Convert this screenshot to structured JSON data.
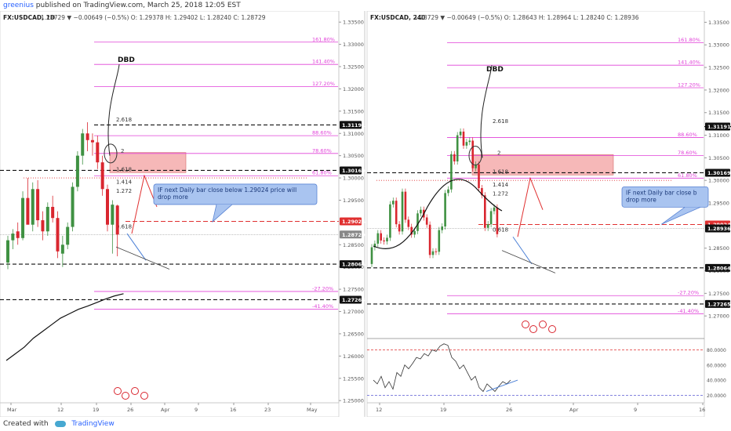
{
  "header": {
    "user": "greenius",
    "published": "published on TradingView.com, March 25, 2018 12:05 EST"
  },
  "footer": {
    "created_with": "Created with",
    "brand": "TradingView"
  },
  "colors": {
    "up": "#3f9142",
    "down": "#d9262f",
    "fib": "#e040d8",
    "zone": "#f4a6a6",
    "note_bg": "#a9c4f0",
    "note_border": "#5a84d4",
    "arrow_red": "#e03030",
    "arrow_blue": "#4a7fd6"
  },
  "chart_data": [
    {
      "type": "candlestick",
      "symbol_title": "FX:USDCAD, 1D",
      "ohlc_label": "1.28729  ▼  −0.00649 (−0.5%)  O: 1.29378  H: 1.29402  L: 1.28240  C: 1.28729",
      "x_ticks": [
        "Mar",
        "12",
        "19",
        "26",
        "Apr",
        "9",
        "16",
        "23",
        "May"
      ],
      "y_ticks": [
        "1.33500",
        "1.33000",
        "1.32500",
        "1.32000",
        "1.31500",
        "1.31000",
        "1.30500",
        "1.30000",
        "1.29500",
        "1.28500",
        "1.28000",
        "1.27500",
        "1.27000",
        "1.26500",
        "1.26000",
        "1.25500",
        "1.25000"
      ],
      "ylim": [
        1.2495,
        1.3375
      ],
      "price_tags": [
        {
          "label": "1.31191",
          "value": 1.31191,
          "style": "black"
        },
        {
          "label": "1.30169",
          "value": 1.30169,
          "style": "black"
        },
        {
          "label": "1.29024",
          "value": 1.29024,
          "style": "red"
        },
        {
          "label": "1.28729",
          "value": 1.28729,
          "style": "gray"
        },
        {
          "label": "1.28064",
          "value": 1.28064,
          "style": "black"
        },
        {
          "label": "1.27265",
          "value": 1.27265,
          "style": "black"
        }
      ],
      "fib_levels": [
        {
          "label": "161.80%",
          "value": 1.3305
        },
        {
          "label": "141.40%",
          "value": 1.3255
        },
        {
          "label": "127.20%",
          "value": 1.3205
        },
        {
          "label": "88.60%",
          "value": 1.3095
        },
        {
          "label": "78.60%",
          "value": 1.3055
        },
        {
          "label": "61.80%",
          "value": 1.3005
        },
        {
          "label": "-27.20%",
          "value": 1.2745
        },
        {
          "label": "-41.40%",
          "value": 1.2705
        }
      ],
      "dashed_levels": [
        1.31191,
        1.30169,
        1.28064,
        1.27265
      ],
      "red_dashed": 1.29024,
      "red_dotted": 1.3,
      "ext_labels": [
        {
          "label": "2.618",
          "value": 1.3125
        },
        {
          "label": "2",
          "value": 1.3055
        },
        {
          "label": "1.618",
          "value": 1.3013
        },
        {
          "label": "1.414",
          "value": 1.2985
        },
        {
          "label": "1.272",
          "value": 1.2965
        },
        {
          "label": "0.618",
          "value": 1.2885
        }
      ],
      "dbd_label": "DBD",
      "note": [
        "IF next Daily bar close below  1.29024 price will",
        "drop more"
      ],
      "zone": [
        1.3012,
        1.3057
      ],
      "candles": [
        {
          "o": 1.281,
          "h": 1.287,
          "l": 1.2795,
          "c": 1.286
        },
        {
          "o": 1.286,
          "h": 1.2885,
          "l": 1.284,
          "c": 1.2875
        },
        {
          "o": 1.288,
          "h": 1.29,
          "l": 1.285,
          "c": 1.2865
        },
        {
          "o": 1.2865,
          "h": 1.297,
          "l": 1.286,
          "c": 1.2955
        },
        {
          "o": 1.2955,
          "h": 1.3,
          "l": 1.29,
          "c": 1.2895
        },
        {
          "o": 1.2895,
          "h": 1.299,
          "l": 1.288,
          "c": 1.2975
        },
        {
          "o": 1.2975,
          "h": 1.2995,
          "l": 1.289,
          "c": 1.2905
        },
        {
          "o": 1.2905,
          "h": 1.2925,
          "l": 1.286,
          "c": 1.288
        },
        {
          "o": 1.288,
          "h": 1.2945,
          "l": 1.287,
          "c": 1.2935
        },
        {
          "o": 1.2935,
          "h": 1.296,
          "l": 1.29,
          "c": 1.291
        },
        {
          "o": 1.291,
          "h": 1.2925,
          "l": 1.282,
          "c": 1.2835
        },
        {
          "o": 1.283,
          "h": 1.287,
          "l": 1.28,
          "c": 1.285
        },
        {
          "o": 1.285,
          "h": 1.29,
          "l": 1.284,
          "c": 1.289
        },
        {
          "o": 1.289,
          "h": 1.299,
          "l": 1.288,
          "c": 1.298
        },
        {
          "o": 1.298,
          "h": 1.306,
          "l": 1.297,
          "c": 1.305
        },
        {
          "o": 1.305,
          "h": 1.311,
          "l": 1.303,
          "c": 1.31
        },
        {
          "o": 1.31,
          "h": 1.3125,
          "l": 1.306,
          "c": 1.3085
        },
        {
          "o": 1.3085,
          "h": 1.31,
          "l": 1.305,
          "c": 1.308
        },
        {
          "o": 1.308,
          "h": 1.3095,
          "l": 1.302,
          "c": 1.3035
        },
        {
          "o": 1.3035,
          "h": 1.305,
          "l": 1.296,
          "c": 1.2975
        },
        {
          "o": 1.2975,
          "h": 1.2985,
          "l": 1.288,
          "c": 1.2895
        },
        {
          "o": 1.2895,
          "h": 1.295,
          "l": 1.283,
          "c": 1.294
        },
        {
          "o": 1.2938,
          "h": 1.294,
          "l": 1.2824,
          "c": 1.2873
        }
      ],
      "ma": [
        1.259,
        1.2605,
        1.262,
        1.264,
        1.2655,
        1.267,
        1.2685,
        1.2695,
        1.2705,
        1.2712,
        1.272,
        1.2728,
        1.2735,
        1.274
      ]
    },
    {
      "type": "candlestick",
      "symbol_title": "FX:USDCAD, 240",
      "ohlc_label": "1.28729  ▼  −0.00649 (−0.5%)  O: 1.28643  H: 1.28964  L: 1.28240  C: 1.28936",
      "x_ticks": [
        "12",
        "19",
        "26",
        "Apr",
        "9",
        "16"
      ],
      "y_ticks": [
        "1.33500",
        "1.33000",
        "1.32500",
        "1.32000",
        "1.31500",
        "1.31000",
        "1.30500",
        "1.30000",
        "1.29500",
        "1.28500",
        "1.28000",
        "1.27500",
        "1.27000"
      ],
      "ylim": [
        1.265,
        1.3375
      ],
      "price_tags": [
        {
          "label": "1.31191",
          "value": 1.31191,
          "style": "black"
        },
        {
          "label": "1.30169",
          "value": 1.30169,
          "style": "black"
        },
        {
          "label": "1.29024",
          "value": 1.29024,
          "style": "red"
        },
        {
          "label": "1.28936",
          "value": 1.28936,
          "style": "black"
        },
        {
          "label": "1.28064",
          "value": 1.28064,
          "style": "black"
        },
        {
          "label": "1.27265",
          "value": 1.27265,
          "style": "black"
        }
      ],
      "fib_levels": [
        {
          "label": "161.80%",
          "value": 1.3305
        },
        {
          "label": "141.40%",
          "value": 1.3255
        },
        {
          "label": "127.20%",
          "value": 1.3205
        },
        {
          "label": "88.60%",
          "value": 1.3095
        },
        {
          "label": "78.60%",
          "value": 1.3055
        },
        {
          "label": "61.80%",
          "value": 1.3005
        },
        {
          "label": "-27.20%",
          "value": 1.2745
        },
        {
          "label": "-41.40%",
          "value": 1.2705
        }
      ],
      "dashed_levels": [
        1.31191,
        1.30169,
        1.28064,
        1.27265
      ],
      "red_dashed": 1.29024,
      "red_dotted": 1.3,
      "ext_labels": [
        {
          "label": "2.618",
          "value": 1.3125
        },
        {
          "label": "2",
          "value": 1.3055
        },
        {
          "label": "1.618",
          "value": 1.3013
        },
        {
          "label": "1.414",
          "value": 1.2985
        },
        {
          "label": "1.272",
          "value": 1.2965
        },
        {
          "label": "0.618",
          "value": 1.2885
        }
      ],
      "dbd_label": "DBD",
      "note": [
        "IF next Daily bar close b",
        "drop more"
      ],
      "zone": [
        1.3012,
        1.3057
      ],
      "oscillator": {
        "y_ticks": [
          "80.0000",
          "60.0000",
          "40.0000",
          "20.0000"
        ],
        "ylim": [
          10,
          95
        ],
        "upper": 80,
        "lower": 20,
        "values": [
          40,
          35,
          45,
          30,
          38,
          28,
          50,
          45,
          60,
          55,
          62,
          70,
          68,
          75,
          72,
          80,
          78,
          85,
          88,
          86,
          70,
          65,
          55,
          60,
          50,
          40,
          45,
          30,
          25,
          35,
          30,
          25,
          32,
          38,
          35,
          40
        ]
      }
    }
  ]
}
